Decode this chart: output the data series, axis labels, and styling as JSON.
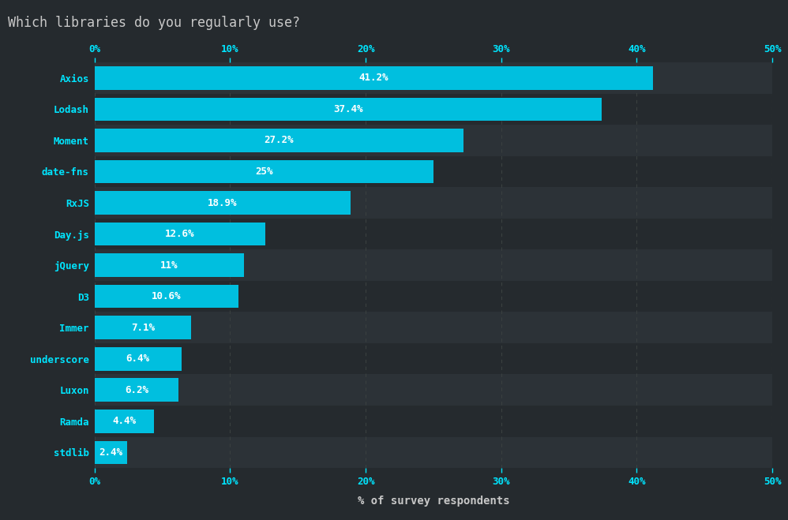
{
  "title": "Which libraries do you regularly use?",
  "xlabel": "% of survey respondents",
  "categories": [
    "Axios",
    "Lodash",
    "Moment",
    "date-fns",
    "RxJS",
    "Day.js",
    "jQuery",
    "D3",
    "Immer",
    "underscore",
    "Luxon",
    "Ramda",
    "stdlib"
  ],
  "values": [
    41.2,
    37.4,
    27.2,
    25.0,
    18.9,
    12.6,
    11.0,
    10.6,
    7.1,
    6.4,
    6.2,
    4.4,
    2.4
  ],
  "labels": [
    "41.2%",
    "37.4%",
    "27.2%",
    "25%",
    "18.9%",
    "12.6%",
    "11%",
    "10.6%",
    "7.1%",
    "6.4%",
    "6.2%",
    "4.4%",
    "2.4%"
  ],
  "bar_color": "#00BFDF",
  "background_color": "#252a2e",
  "row_odd_color": "#2c3237",
  "row_even_color": "#252a2e",
  "text_color": "#00e5ff",
  "label_text_color": "#ffffff",
  "title_color": "#c8c8c8",
  "axis_label_color": "#c8c8c8",
  "tick_color": "#00e5ff",
  "grid_color": "#3a4040",
  "xlim": [
    0,
    50
  ],
  "xticks": [
    0,
    10,
    20,
    30,
    40,
    50
  ],
  "xtick_labels": [
    "0%",
    "10%",
    "20%",
    "30%",
    "40%",
    "50%"
  ],
  "title_fontsize": 12,
  "axis_fontsize": 10,
  "tick_fontsize": 9,
  "bar_label_fontsize": 9,
  "category_fontsize": 9
}
